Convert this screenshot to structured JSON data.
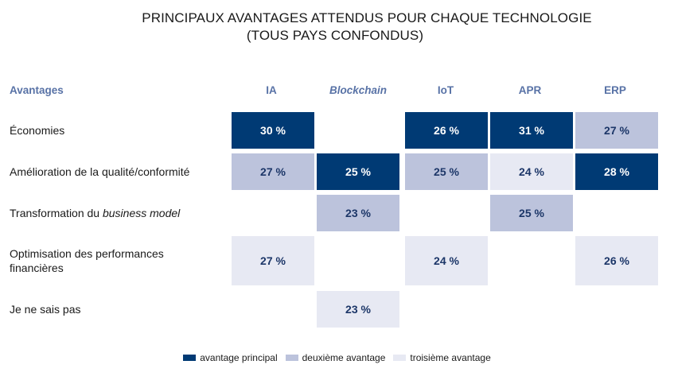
{
  "chart_data": {
    "type": "table",
    "title_line1": "PRINCIPAUX AVANTAGES ATTENDUS POUR CHAQUE TECHNOLOGIE",
    "title_line2": "(TOUS PAYS CONFONDUS)",
    "header_row": "Avantages",
    "columns": [
      "IA",
      "Blockchain",
      "IoT",
      "APR",
      "ERP"
    ],
    "rows": [
      {
        "label": "Économies",
        "cells": [
          {
            "value": "30 %",
            "level": 1
          },
          null,
          {
            "value": "26 %",
            "level": 1
          },
          {
            "value": "31 %",
            "level": 1
          },
          {
            "value": "27 %",
            "level": 2
          }
        ]
      },
      {
        "label": "Amélioration de la qualité/conformité",
        "cells": [
          {
            "value": "27 %",
            "level": 2
          },
          {
            "value": "25 %",
            "level": 1
          },
          {
            "value": "25 %",
            "level": 2
          },
          {
            "value": "24 %",
            "level": 3
          },
          {
            "value": "28 %",
            "level": 1
          }
        ]
      },
      {
        "label_prefix": "Transformation du ",
        "label_italic": "business model",
        "cells": [
          null,
          {
            "value": "23 %",
            "level": 2
          },
          null,
          {
            "value": "25 %",
            "level": 2
          },
          null
        ]
      },
      {
        "label_line1": "Optimisation des performances",
        "label_line2": "financières",
        "cells": [
          {
            "value": "27 %",
            "level": 3
          },
          null,
          {
            "value": "24 %",
            "level": 3
          },
          null,
          {
            "value": "26 %",
            "level": 3
          }
        ]
      },
      {
        "label": "Je ne sais pas",
        "cells": [
          null,
          {
            "value": "23 %",
            "level": 3
          },
          null,
          null,
          null
        ]
      }
    ],
    "legend": [
      {
        "label": "avantage principal",
        "color": "#003a74"
      },
      {
        "label": "deuxième avantage",
        "color": "#bcc3dc"
      },
      {
        "label": "troisième avantage",
        "color": "#e7e9f3"
      }
    ]
  }
}
